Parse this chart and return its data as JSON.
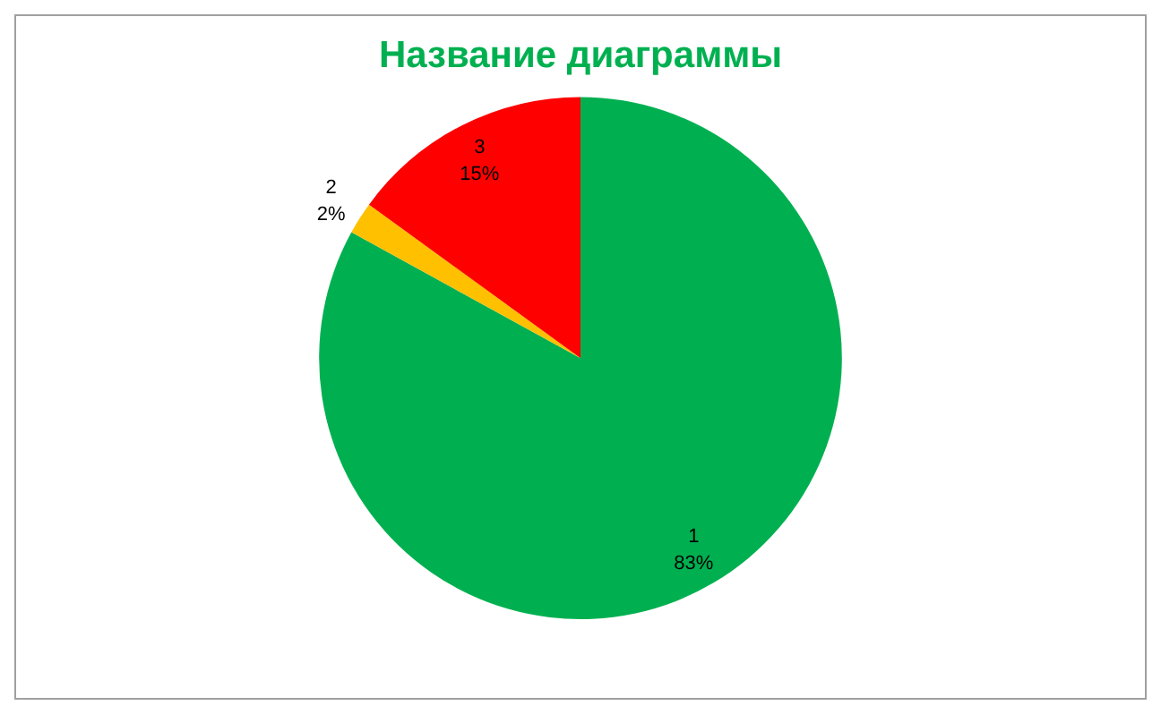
{
  "chart_data": {
    "type": "pie",
    "title": "Название диаграммы",
    "categories": [
      "1",
      "2",
      "3"
    ],
    "values": [
      83,
      2,
      15
    ],
    "colors": [
      "#00b050",
      "#ffc000",
      "#ff0000"
    ],
    "value_labels": [
      "83%",
      "2%",
      "15%"
    ],
    "legend": false
  }
}
